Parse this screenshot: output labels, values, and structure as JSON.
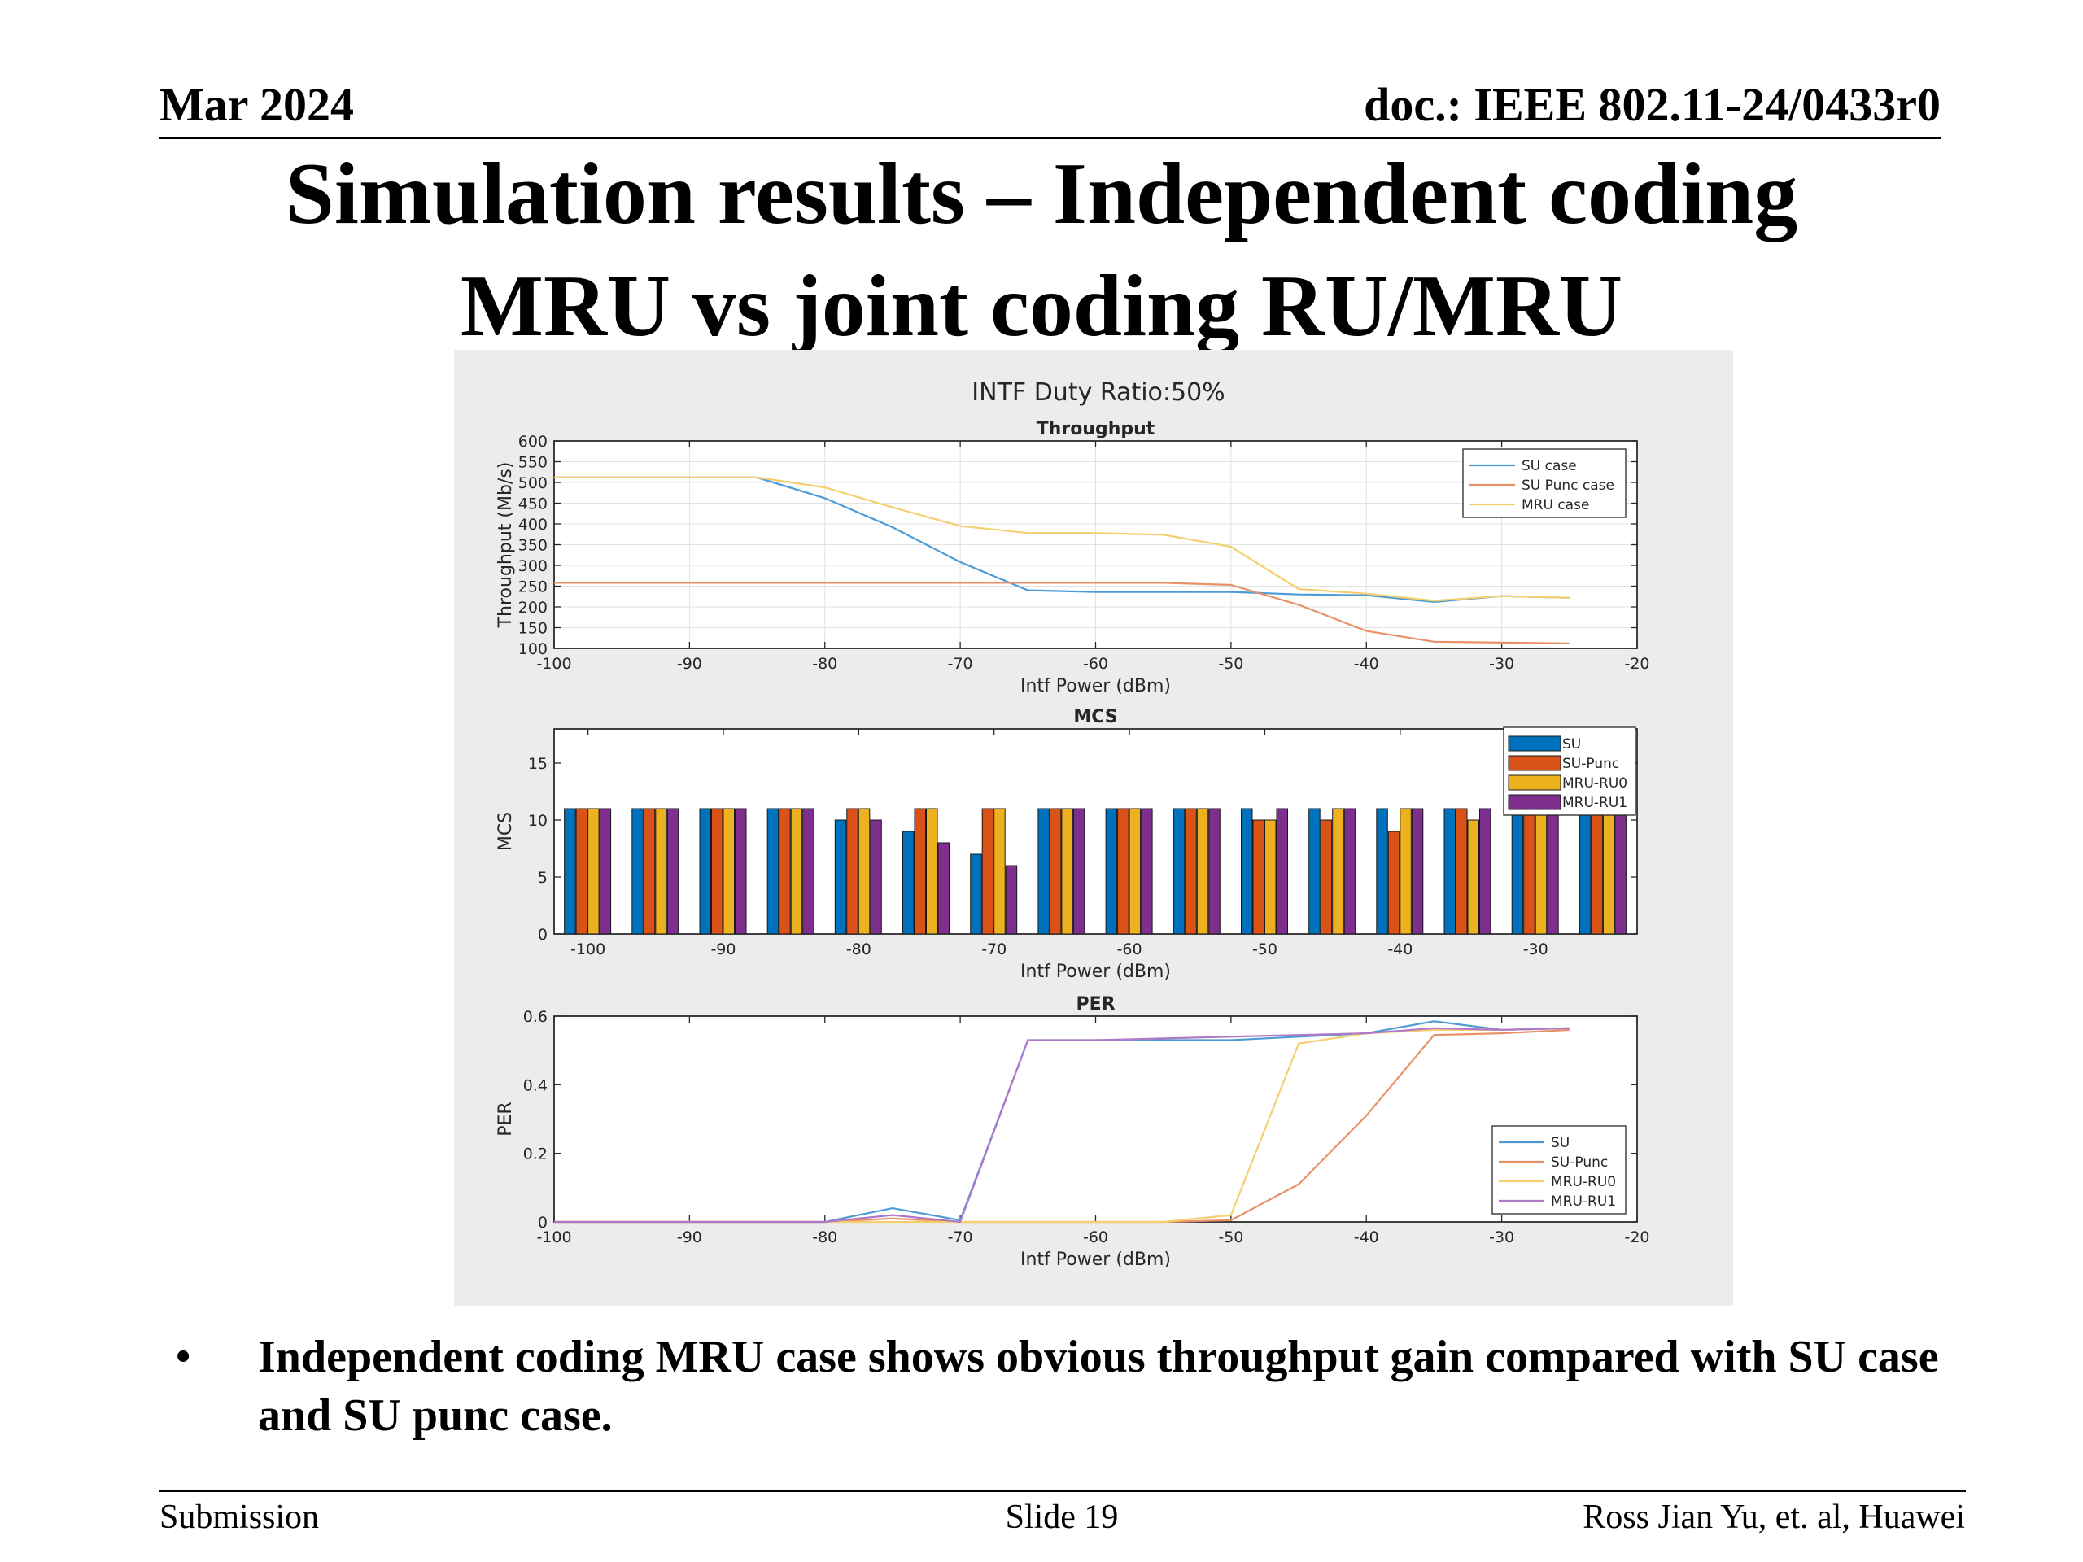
{
  "header": {
    "date": "Mar 2024",
    "doc_id": "doc.: IEEE 802.11-24/0433r0"
  },
  "title": {
    "line1": "Simulation results – Independent coding",
    "line2": "MRU vs joint coding RU/MRU"
  },
  "figure": {
    "suptitle": "INTF Duty Ratio:50%"
  },
  "bullet": {
    "mark": "•",
    "text": "Independent coding MRU case shows obvious throughput gain compared with SU case and SU punc case."
  },
  "footer": {
    "left": "Submission",
    "center": "Slide 19",
    "right": "Ross Jian Yu, et. al, Huawei"
  },
  "colors": {
    "blue": "#0072BD",
    "orange": "#D95319",
    "yellow": "#EDB120",
    "purple": "#7E2F8E",
    "light_blue": "#4d9bd6",
    "light_orange": "#e89066",
    "light_yellow": "#f5cf6e",
    "light_purple": "#b079c8"
  },
  "chart_data": [
    {
      "type": "line",
      "title": "Throughput",
      "xlabel": "Intf Power (dBm)",
      "ylabel": "Throughput (Mb/s)",
      "xlim": [
        -100,
        -20
      ],
      "ylim": [
        100,
        600
      ],
      "xticks": [
        "-100",
        "-90",
        "-80",
        "-70",
        "-60",
        "-50",
        "-40",
        "-30",
        "-20"
      ],
      "yticks": [
        "100",
        "150",
        "200",
        "250",
        "300",
        "350",
        "400",
        "450",
        "500",
        "550",
        "600"
      ],
      "grid": true,
      "legend_position": "top-right",
      "x": [
        -100,
        -95,
        -90,
        -85,
        -80,
        -75,
        -70,
        -65,
        -60,
        -55,
        -50,
        -45,
        -40,
        -35,
        -30,
        -25
      ],
      "series": [
        {
          "name": "SU case",
          "color": "#4d9bd6",
          "values": [
            512,
            512,
            512,
            512,
            462,
            392,
            308,
            240,
            236,
            236,
            236,
            230,
            228,
            212,
            226,
            222
          ]
        },
        {
          "name": "SU Punc case",
          "color": "#e89066",
          "values": [
            258,
            258,
            258,
            258,
            258,
            258,
            258,
            258,
            258,
            258,
            253,
            205,
            142,
            116,
            114,
            112
          ]
        },
        {
          "name": "MRU case",
          "color": "#f5cf6e",
          "values": [
            512,
            512,
            512,
            512,
            488,
            440,
            395,
            378,
            378,
            374,
            345,
            243,
            232,
            215,
            226,
            222
          ]
        }
      ]
    },
    {
      "type": "bar",
      "title": "MCS",
      "xlabel": "Intf Power (dBm)",
      "ylabel": "MCS",
      "xlim": [
        -102.5,
        -22.5
      ],
      "ylim": [
        0,
        18
      ],
      "xticks": [
        "-100",
        "-90",
        "-80",
        "-70",
        "-60",
        "-50",
        "-40",
        "-30"
      ],
      "yticks": [
        "0",
        "5",
        "10",
        "15"
      ],
      "grid": false,
      "legend_position": "top-right",
      "categories": [
        -100,
        -95,
        -90,
        -85,
        -80,
        -75,
        -70,
        -65,
        -60,
        -55,
        -50,
        -45,
        -40,
        -35,
        -30,
        -25
      ],
      "series": [
        {
          "name": "SU",
          "color": "#0072BD",
          "values": [
            11,
            11,
            11,
            11,
            10,
            9,
            7,
            11,
            11,
            11,
            11,
            11,
            11,
            11,
            11,
            11
          ]
        },
        {
          "name": "SU-Punc",
          "color": "#D95319",
          "values": [
            11,
            11,
            11,
            11,
            11,
            11,
            11,
            11,
            11,
            11,
            10,
            10,
            9,
            11,
            11,
            11
          ]
        },
        {
          "name": "MRU-RU0",
          "color": "#EDB120",
          "values": [
            11,
            11,
            11,
            11,
            11,
            11,
            11,
            11,
            11,
            11,
            10,
            11,
            11,
            10,
            11,
            11
          ]
        },
        {
          "name": "MRU-RU1",
          "color": "#7E2F8E",
          "values": [
            11,
            11,
            11,
            11,
            10,
            8,
            6,
            11,
            11,
            11,
            11,
            11,
            11,
            11,
            11,
            11
          ]
        }
      ]
    },
    {
      "type": "line",
      "title": "PER",
      "xlabel": "Intf Power (dBm)",
      "ylabel": "PER",
      "xlim": [
        -100,
        -20
      ],
      "ylim": [
        0,
        0.6
      ],
      "xticks": [
        "-100",
        "-90",
        "-80",
        "-70",
        "-60",
        "-50",
        "-40",
        "-30",
        "-20"
      ],
      "yticks": [
        "0",
        "0.2",
        "0.4",
        "0.6"
      ],
      "grid": false,
      "legend_position": "bottom-right",
      "x": [
        -100,
        -95,
        -90,
        -85,
        -80,
        -75,
        -70,
        -65,
        -60,
        -55,
        -50,
        -45,
        -40,
        -35,
        -30,
        -25
      ],
      "series": [
        {
          "name": "SU",
          "color": "#4d9bd6",
          "values": [
            0,
            0,
            0,
            0,
            0,
            0.04,
            0.005,
            0.53,
            0.53,
            0.53,
            0.53,
            0.54,
            0.55,
            0.585,
            0.56,
            0.565
          ]
        },
        {
          "name": "SU-Punc",
          "color": "#e89066",
          "values": [
            0,
            0,
            0,
            0,
            0,
            0.01,
            0,
            0,
            0,
            0,
            0.005,
            0.11,
            0.31,
            0.545,
            0.55,
            0.56
          ]
        },
        {
          "name": "MRU-RU0",
          "color": "#f5cf6e",
          "values": [
            0,
            0,
            0,
            0,
            0,
            0,
            0,
            0,
            0,
            0,
            0.02,
            0.52,
            0.55,
            0.56,
            0.56,
            0.565
          ]
        },
        {
          "name": "MRU-RU1",
          "color": "#b079c8",
          "values": [
            0,
            0,
            0,
            0,
            0,
            0.02,
            0,
            0.53,
            0.53,
            0.535,
            0.54,
            0.545,
            0.55,
            0.565,
            0.56,
            0.565
          ]
        }
      ]
    }
  ]
}
